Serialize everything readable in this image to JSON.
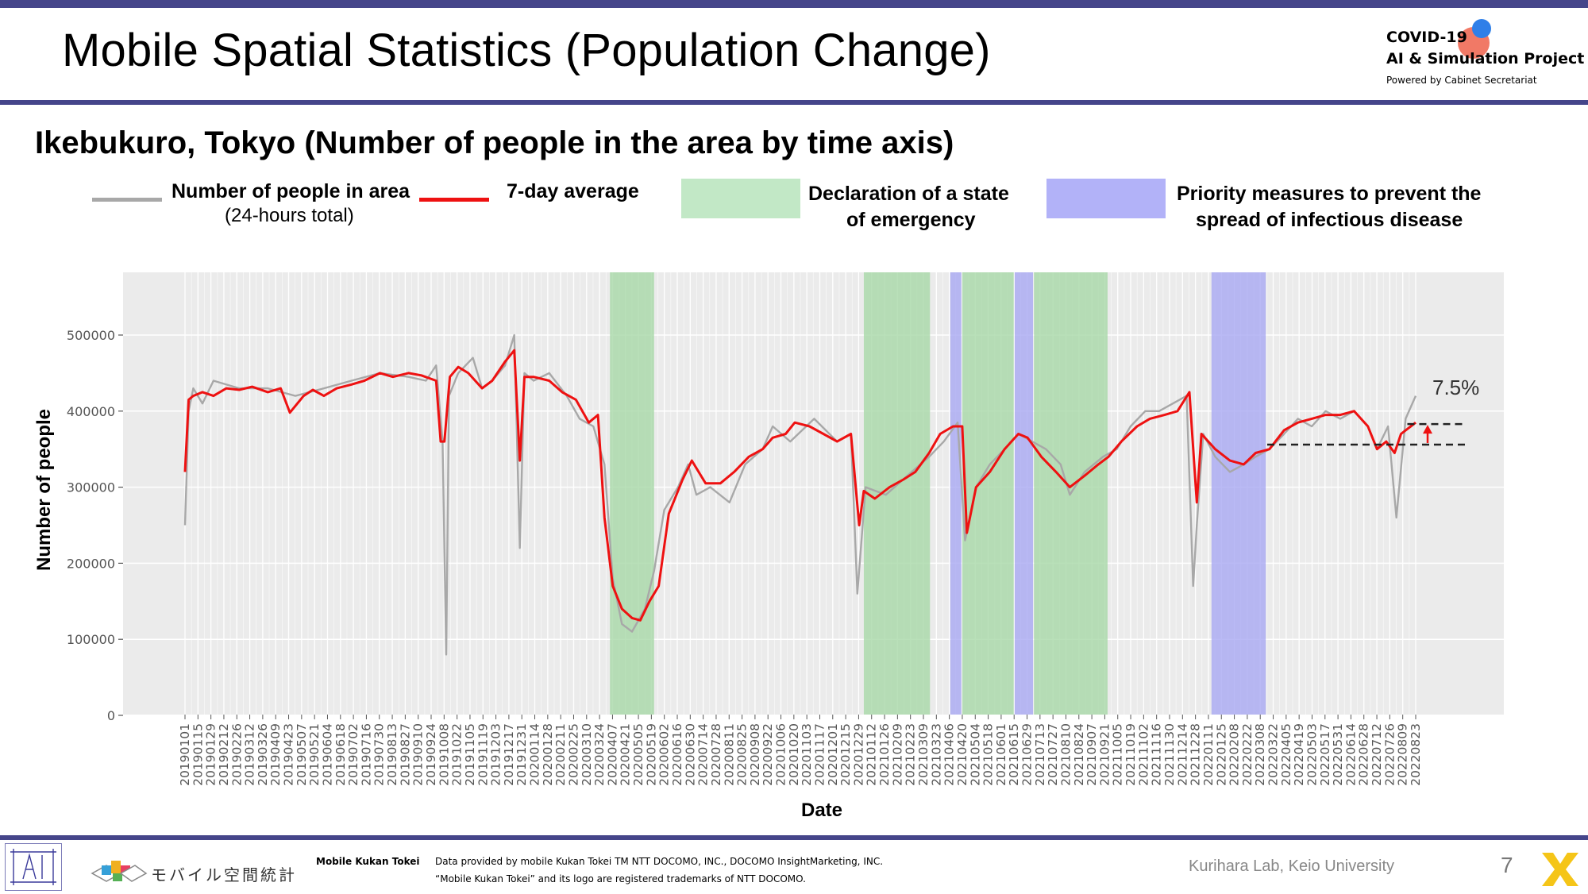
{
  "slide": {
    "title": "Mobile Spatial Statistics (Population Change)",
    "subtitle": "Ikebukuro, Tokyo (Number of people in the area by time axis)",
    "page_number": "7",
    "lab": "Kurihara Lab, Keio University"
  },
  "logo": {
    "line1": "COVID-19",
    "line2": "AI & Simulation Project",
    "line3": "Powered by Cabinet Secretariat"
  },
  "legend": {
    "gray_line_label": "Number of people in area",
    "gray_line_sublabel": "(24-hours total)",
    "red_line_label": "7-day average",
    "emergency_label_1": "Declaration of a state",
    "emergency_label_2": "of emergency",
    "priority_label_1": "Priority measures to prevent the",
    "priority_label_2": "spread of infectious disease"
  },
  "colors": {
    "daily_line": "#a8a8a8",
    "average_line": "#ee1111",
    "emergency_band": "#a8d8a8",
    "priority_band": "#a9a9f2",
    "plot_background": "#ebebeb",
    "accent_bar": "#45458a"
  },
  "footer": {
    "brand_jp": "モバイル空間統計",
    "brand_en": "Mobile Kukan Tokei",
    "credit_1": "Data provided by mobile Kukan Tokei TM NTT DOCOMO, INC., DOCOMO InsightMarketing, INC.",
    "credit_2": "“Mobile Kukan Tokei” and its logo are registered trademarks of NTT DOCOMO."
  },
  "chart_data": {
    "type": "line",
    "xlabel": "Date",
    "ylabel": "Number of people",
    "ylim": [
      0,
      580000
    ],
    "yticks": [
      0,
      100000,
      200000,
      300000,
      400000,
      500000
    ],
    "ytick_labels": [
      "0",
      "100000",
      "200000",
      "300000",
      "400000",
      "500000"
    ],
    "x_range": [
      "2019-01-01",
      "2022-08-31"
    ],
    "xtick_labels": [
      "20190101",
      "20190115",
      "20190129",
      "20190212",
      "20190226",
      "20190312",
      "20190326",
      "20190409",
      "20190423",
      "20190507",
      "20190521",
      "20190604",
      "20190618",
      "20190702",
      "20190716",
      "20190730",
      "20190813",
      "20190827",
      "20190910",
      "20190924",
      "20191008",
      "20191022",
      "20191105",
      "20191119",
      "20191203",
      "20191217",
      "20191231",
      "20200114",
      "20200128",
      "20200211",
      "20200225",
      "20200310",
      "20200324",
      "20200407",
      "20200421",
      "20200505",
      "20200519",
      "20200602",
      "20200616",
      "20200630",
      "20200714",
      "20200728",
      "20200811",
      "20200825",
      "20200908",
      "20200922",
      "20201006",
      "20201020",
      "20201103",
      "20201117",
      "20201201",
      "20201215",
      "20201229",
      "20210112",
      "20210126",
      "20210209",
      "20210223",
      "20210309",
      "20210323",
      "20210406",
      "20210420",
      "20210504",
      "20210518",
      "20210601",
      "20210615",
      "20210629",
      "20210713",
      "20210727",
      "20210810",
      "20210824",
      "20210907",
      "20210921",
      "20211005",
      "20211019",
      "20211102",
      "20211116",
      "20211130",
      "20211214",
      "20211228",
      "20220111",
      "20220125",
      "20220208",
      "20220222",
      "20220308",
      "20220322",
      "20220405",
      "20220419",
      "20220503",
      "20220517",
      "20220531",
      "20220614",
      "20220628",
      "20220712",
      "20220726",
      "20220809",
      "20220823"
    ],
    "grid": true,
    "legend_position": "top",
    "bands": [
      {
        "kind": "emergency",
        "start": "2020-04-07",
        "end": "2020-05-25"
      },
      {
        "kind": "emergency",
        "start": "2021-01-08",
        "end": "2021-03-21"
      },
      {
        "kind": "priority",
        "start": "2021-04-12",
        "end": "2021-04-24"
      },
      {
        "kind": "emergency",
        "start": "2021-04-25",
        "end": "2021-06-20"
      },
      {
        "kind": "priority",
        "start": "2021-06-21",
        "end": "2021-07-11"
      },
      {
        "kind": "emergency",
        "start": "2021-07-12",
        "end": "2021-09-30"
      },
      {
        "kind": "priority",
        "start": "2022-01-21",
        "end": "2022-03-21"
      }
    ],
    "series": [
      {
        "name": "Number of people in area",
        "x": [
          "2019-01-01",
          "2019-01-05",
          "2019-01-10",
          "2019-01-20",
          "2019-02-01",
          "2019-03-01",
          "2019-04-01",
          "2019-05-01",
          "2019-06-01",
          "2019-07-01",
          "2019-08-01",
          "2019-09-01",
          "2019-09-20",
          "2019-10-01",
          "2019-10-08",
          "2019-10-12",
          "2019-10-15",
          "2019-10-25",
          "2019-11-10",
          "2019-11-20",
          "2019-12-01",
          "2019-12-15",
          "2019-12-25",
          "2019-12-31",
          "2020-01-05",
          "2020-01-15",
          "2020-02-01",
          "2020-02-20",
          "2020-03-05",
          "2020-03-20",
          "2020-04-01",
          "2020-04-10",
          "2020-04-20",
          "2020-05-01",
          "2020-05-15",
          "2020-05-25",
          "2020-06-05",
          "2020-06-20",
          "2020-07-01",
          "2020-07-10",
          "2020-07-25",
          "2020-08-15",
          "2020-09-01",
          "2020-09-20",
          "2020-10-01",
          "2020-10-20",
          "2020-11-15",
          "2020-12-10",
          "2020-12-25",
          "2021-01-01",
          "2021-01-10",
          "2021-02-01",
          "2021-03-01",
          "2021-03-20",
          "2021-04-05",
          "2021-04-20",
          "2021-04-28",
          "2021-05-10",
          "2021-05-25",
          "2021-06-10",
          "2021-06-25",
          "2021-07-10",
          "2021-07-25",
          "2021-08-10",
          "2021-08-20",
          "2021-09-05",
          "2021-09-25",
          "2021-10-10",
          "2021-10-25",
          "2021-11-10",
          "2021-11-25",
          "2021-12-10",
          "2021-12-25",
          "2022-01-01",
          "2022-01-05",
          "2022-01-12",
          "2022-01-25",
          "2022-02-10",
          "2022-02-25",
          "2022-03-10",
          "2022-03-25",
          "2022-04-10",
          "2022-04-25",
          "2022-05-10",
          "2022-05-25",
          "2022-06-10",
          "2022-06-25",
          "2022-07-10",
          "2022-07-20",
          "2022-08-01",
          "2022-08-10",
          "2022-08-20",
          "2022-08-31"
        ],
        "values": [
          250000,
          400000,
          430000,
          410000,
          440000,
          430000,
          430000,
          420000,
          430000,
          440000,
          450000,
          445000,
          440000,
          460000,
          360000,
          80000,
          420000,
          450000,
          470000,
          430000,
          440000,
          460000,
          500000,
          220000,
          450000,
          440000,
          450000,
          420000,
          390000,
          380000,
          330000,
          180000,
          120000,
          110000,
          140000,
          190000,
          270000,
          300000,
          330000,
          290000,
          300000,
          280000,
          330000,
          350000,
          380000,
          360000,
          390000,
          360000,
          370000,
          160000,
          300000,
          290000,
          320000,
          340000,
          360000,
          385000,
          230000,
          300000,
          330000,
          350000,
          370000,
          360000,
          350000,
          330000,
          290000,
          320000,
          340000,
          350000,
          380000,
          400000,
          400000,
          410000,
          420000,
          170000,
          250000,
          370000,
          340000,
          320000,
          330000,
          340000,
          350000,
          370000,
          390000,
          380000,
          400000,
          390000,
          400000,
          380000,
          350000,
          380000,
          260000,
          390000,
          420000
        ]
      },
      {
        "name": "7-day average",
        "x": [
          "2019-01-01",
          "2019-01-05",
          "2019-01-10",
          "2019-01-20",
          "2019-02-01",
          "2019-02-15",
          "2019-03-01",
          "2019-03-15",
          "2019-04-01",
          "2019-04-15",
          "2019-04-25",
          "2019-05-10",
          "2019-05-20",
          "2019-06-01",
          "2019-06-15",
          "2019-07-01",
          "2019-07-15",
          "2019-08-01",
          "2019-08-15",
          "2019-09-01",
          "2019-09-15",
          "2019-10-01",
          "2019-10-06",
          "2019-10-10",
          "2019-10-16",
          "2019-10-25",
          "2019-11-05",
          "2019-11-20",
          "2019-12-01",
          "2019-12-15",
          "2019-12-25",
          "2019-12-31",
          "2020-01-05",
          "2020-01-15",
          "2020-02-01",
          "2020-02-15",
          "2020-03-01",
          "2020-03-15",
          "2020-03-25",
          "2020-04-01",
          "2020-04-10",
          "2020-04-20",
          "2020-05-01",
          "2020-05-10",
          "2020-05-20",
          "2020-05-30",
          "2020-06-10",
          "2020-06-25",
          "2020-07-05",
          "2020-07-20",
          "2020-08-05",
          "2020-08-20",
          "2020-09-05",
          "2020-09-20",
          "2020-10-01",
          "2020-10-15",
          "2020-10-25",
          "2020-11-10",
          "2020-11-25",
          "2020-12-10",
          "2020-12-25",
          "2021-01-03",
          "2021-01-08",
          "2021-01-20",
          "2021-02-05",
          "2021-02-20",
          "2021-03-05",
          "2021-03-20",
          "2021-04-01",
          "2021-04-15",
          "2021-04-25",
          "2021-04-30",
          "2021-05-10",
          "2021-05-25",
          "2021-06-10",
          "2021-06-25",
          "2021-07-05",
          "2021-07-20",
          "2021-08-05",
          "2021-08-20",
          "2021-09-05",
          "2021-09-20",
          "2021-10-01",
          "2021-10-15",
          "2021-11-01",
          "2021-11-15",
          "2021-12-01",
          "2021-12-15",
          "2021-12-28",
          "2022-01-05",
          "2022-01-10",
          "2022-01-25",
          "2022-02-10",
          "2022-02-25",
          "2022-03-10",
          "2022-03-25",
          "2022-04-10",
          "2022-04-25",
          "2022-05-10",
          "2022-05-25",
          "2022-06-10",
          "2022-06-25",
          "2022-07-10",
          "2022-07-20",
          "2022-07-30",
          "2022-08-08",
          "2022-08-15",
          "2022-08-31"
        ],
        "values": [
          320000,
          415000,
          420000,
          425000,
          420000,
          430000,
          428000,
          432000,
          425000,
          430000,
          398000,
          420000,
          428000,
          420000,
          430000,
          435000,
          440000,
          450000,
          445000,
          450000,
          447000,
          440000,
          360000,
          360000,
          445000,
          458000,
          450000,
          430000,
          440000,
          465000,
          480000,
          335000,
          445000,
          445000,
          440000,
          425000,
          415000,
          385000,
          395000,
          260000,
          170000,
          140000,
          128000,
          125000,
          150000,
          170000,
          265000,
          310000,
          335000,
          305000,
          305000,
          320000,
          340000,
          350000,
          365000,
          370000,
          385000,
          380000,
          370000,
          360000,
          370000,
          250000,
          295000,
          285000,
          300000,
          310000,
          320000,
          345000,
          370000,
          380000,
          380000,
          240000,
          300000,
          320000,
          350000,
          370000,
          365000,
          340000,
          320000,
          300000,
          315000,
          330000,
          340000,
          360000,
          380000,
          390000,
          395000,
          400000,
          425000,
          280000,
          370000,
          350000,
          335000,
          330000,
          345000,
          350000,
          375000,
          385000,
          390000,
          395000,
          395000,
          400000,
          380000,
          350000,
          360000,
          345000,
          370000,
          385000
        ]
      }
    ],
    "annotations": [
      {
        "text": "7.5%",
        "x": "2022-08-15",
        "y": 395000,
        "kind": "increase-marker",
        "from_value": 356000,
        "to_value": 383000
      }
    ]
  }
}
